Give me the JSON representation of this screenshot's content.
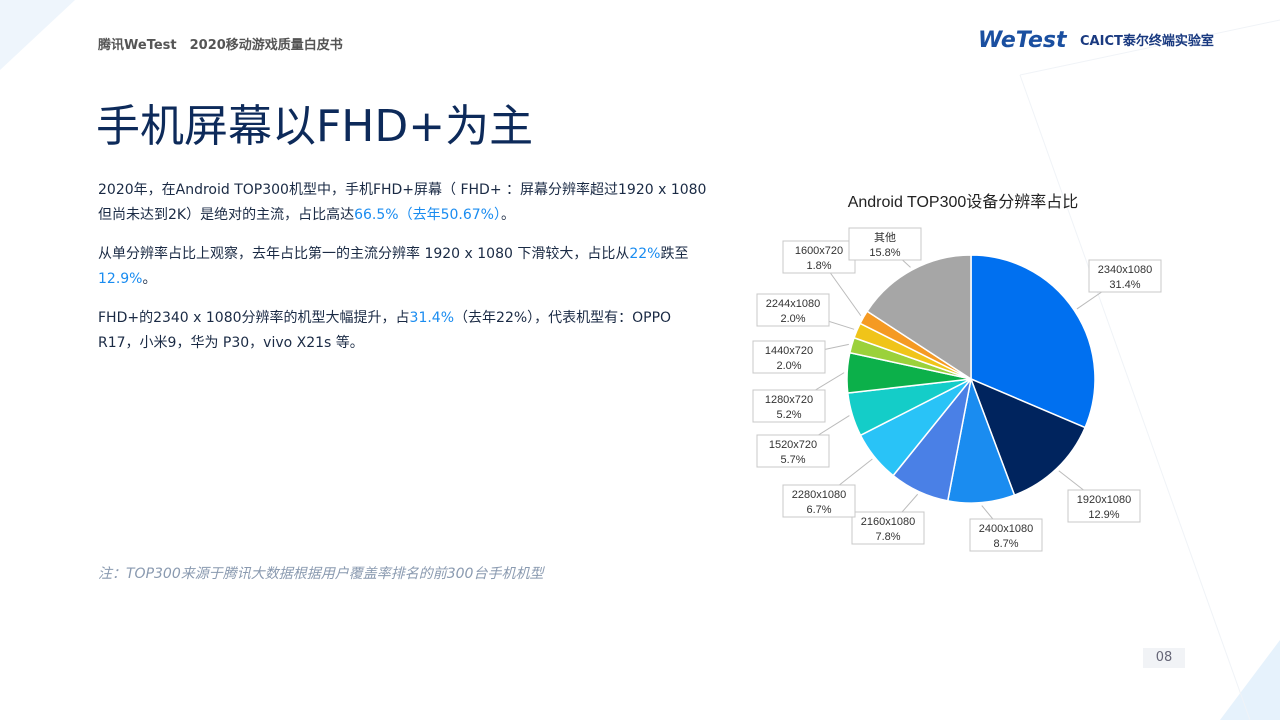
{
  "header": {
    "text": "腾讯WeTest　2020移动游戏质量白皮书",
    "logo": "WeTest",
    "logo2": "CAICT泰尔终端实验室"
  },
  "title": "手机屏幕以FHD+为主",
  "paragraphs": [
    [
      "2020年，在Android TOP300机型中，手机FHD+屏幕（ FHD+ ：屏幕分辨率超过1920 x 1080但尚未达到2K）是绝对的主流，占比高达",
      "66.5%（去年50.67%）",
      "。"
    ],
    [
      "从单分辨率占比上观察，去年占比第一的主流分辨率 1920 x 1080 下滑较大，占比从",
      "22%",
      "跌至",
      "12.9%",
      "。"
    ],
    [
      "FHD+的2340 x 1080分辨率的机型大幅提升，占",
      "31.4%",
      "（去年22%），代表机型有：OPPO R17，小米9，华为 P30，vivo X21s 等。"
    ]
  ],
  "note": "注：TOP300来源于腾讯大数据根据用户覆盖率排名的前300台手机机型",
  "page_number": "08",
  "chart_data": {
    "type": "pie",
    "title": "Android TOP300设备分辨率占比",
    "categories": [
      "2340x1080",
      "1920x1080",
      "2400x1080",
      "2160x1080",
      "2280x1080",
      "1520x720",
      "1280x720",
      "1440x720",
      "2244x1080",
      "1600x720",
      "其他"
    ],
    "values": [
      31.4,
      12.9,
      8.7,
      7.8,
      6.7,
      5.7,
      5.2,
      2.0,
      2.0,
      1.8,
      15.8
    ],
    "value_labels": [
      "31.4%",
      "12.9%",
      "8.7%",
      "7.8%",
      "6.7%",
      "5.7%",
      "5.2%",
      "2.0%",
      "2.0%",
      "1.8%",
      "15.8%"
    ],
    "colors": [
      "#0070f0",
      "#00245e",
      "#1a8cf0",
      "#4a80e6",
      "#29c3f7",
      "#14cdc8",
      "#0cb04a",
      "#9bd13b",
      "#f0c419",
      "#f59a23",
      "#a6a6a6"
    ]
  }
}
